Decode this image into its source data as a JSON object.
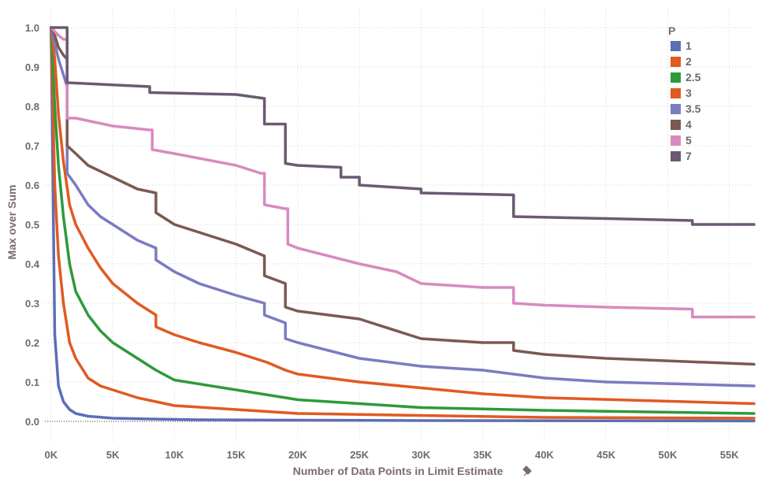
{
  "chart_data": {
    "type": "line",
    "xlabel": "Number of Data Points in Limit Estimate",
    "ylabel": "Max over Sum",
    "xlim": [
      -500,
      57000
    ],
    "ylim": [
      -0.05,
      1.05
    ],
    "x_ticks": [
      0,
      5000,
      10000,
      15000,
      20000,
      25000,
      30000,
      35000,
      40000,
      45000,
      50000,
      55000
    ],
    "x_tick_labels": [
      "0K",
      "5K",
      "10K",
      "15K",
      "20K",
      "25K",
      "30K",
      "35K",
      "40K",
      "45K",
      "50K",
      "55K"
    ],
    "y_ticks": [
      0.0,
      0.1,
      0.2,
      0.3,
      0.4,
      0.5,
      0.6,
      0.7,
      0.8,
      0.9,
      1.0
    ],
    "y_tick_labels": [
      "0.0",
      "0.1",
      "0.2",
      "0.3",
      "0.4",
      "0.5",
      "0.6",
      "0.7",
      "0.8",
      "0.9",
      "1.0"
    ],
    "grid": true,
    "legend_title": "P",
    "legend_position": "top-right",
    "series": [
      {
        "name": "1",
        "color": "#5b6fb5",
        "x": [
          0,
          300,
          600,
          1000,
          1500,
          2000,
          3000,
          5000,
          8000,
          12000,
          20000,
          30000,
          57000
        ],
        "y": [
          1.0,
          0.22,
          0.09,
          0.05,
          0.03,
          0.02,
          0.013,
          0.008,
          0.006,
          0.004,
          0.003,
          0.002,
          0.001
        ]
      },
      {
        "name": "2",
        "color": "#e05a22",
        "x": [
          0,
          300,
          600,
          1000,
          1500,
          2000,
          3000,
          4000,
          5000,
          7000,
          10000,
          15000,
          20000,
          30000,
          40000,
          57000
        ],
        "y": [
          1.0,
          0.6,
          0.42,
          0.3,
          0.2,
          0.16,
          0.11,
          0.09,
          0.08,
          0.06,
          0.04,
          0.03,
          0.02,
          0.015,
          0.01,
          0.008
        ]
      },
      {
        "name": "2.5",
        "color": "#2e9a3a",
        "x": [
          0,
          300,
          600,
          1000,
          1500,
          2000,
          3000,
          4000,
          5000,
          7000,
          8500,
          10000,
          15000,
          20000,
          25000,
          30000,
          40000,
          57000
        ],
        "y": [
          1.0,
          0.8,
          0.65,
          0.52,
          0.4,
          0.33,
          0.27,
          0.23,
          0.2,
          0.16,
          0.13,
          0.105,
          0.08,
          0.055,
          0.045,
          0.035,
          0.028,
          0.02
        ]
      },
      {
        "name": "3",
        "color": "#e05a22",
        "x": [
          0,
          300,
          600,
          1000,
          1500,
          2000,
          3000,
          4000,
          5000,
          7000,
          8500,
          8500,
          10000,
          12000,
          15000,
          17500,
          19000,
          20000,
          25000,
          30000,
          35000,
          40000,
          57000
        ],
        "y": [
          1.0,
          0.92,
          0.78,
          0.66,
          0.55,
          0.5,
          0.44,
          0.39,
          0.35,
          0.3,
          0.27,
          0.24,
          0.22,
          0.2,
          0.175,
          0.15,
          0.13,
          0.12,
          0.1,
          0.085,
          0.07,
          0.06,
          0.045
        ]
      },
      {
        "name": "3.5",
        "color": "#7b7bc4",
        "x": [
          0,
          300,
          600,
          1000,
          1300,
          1300,
          2000,
          3000,
          4000,
          5000,
          7000,
          8500,
          8500,
          10000,
          12000,
          15000,
          17300,
          17300,
          19000,
          19000,
          20000,
          25000,
          30000,
          35000,
          40000,
          45000,
          57000
        ],
        "y": [
          1.0,
          0.96,
          0.92,
          0.88,
          0.85,
          0.63,
          0.6,
          0.55,
          0.52,
          0.5,
          0.46,
          0.44,
          0.41,
          0.38,
          0.35,
          0.32,
          0.3,
          0.27,
          0.25,
          0.21,
          0.2,
          0.16,
          0.14,
          0.13,
          0.11,
          0.1,
          0.09
        ]
      },
      {
        "name": "4",
        "color": "#7a5a52",
        "x": [
          0,
          300,
          600,
          1000,
          1300,
          1300,
          2000,
          3000,
          5000,
          7000,
          8500,
          8500,
          10000,
          12000,
          15000,
          17300,
          17300,
          19000,
          19000,
          20000,
          25000,
          30000,
          35000,
          37500,
          37500,
          40000,
          45000,
          57000
        ],
        "y": [
          1.0,
          0.98,
          0.95,
          0.93,
          0.92,
          0.7,
          0.68,
          0.65,
          0.62,
          0.59,
          0.58,
          0.53,
          0.5,
          0.48,
          0.45,
          0.42,
          0.37,
          0.35,
          0.29,
          0.28,
          0.26,
          0.21,
          0.2,
          0.2,
          0.18,
          0.17,
          0.16,
          0.145
        ]
      },
      {
        "name": "5",
        "color": "#d98ac0",
        "x": [
          0,
          300,
          600,
          1000,
          1300,
          1300,
          2000,
          5000,
          8000,
          8200,
          8200,
          10000,
          15000,
          17000,
          17300,
          17300,
          19000,
          19200,
          19200,
          20000,
          25000,
          28000,
          30000,
          35000,
          37500,
          37500,
          40000,
          45000,
          52000,
          52000,
          57000
        ],
        "y": [
          1.0,
          0.99,
          0.98,
          0.97,
          0.97,
          0.77,
          0.77,
          0.75,
          0.74,
          0.74,
          0.69,
          0.68,
          0.65,
          0.63,
          0.63,
          0.55,
          0.54,
          0.54,
          0.45,
          0.44,
          0.4,
          0.38,
          0.35,
          0.34,
          0.34,
          0.3,
          0.295,
          0.29,
          0.285,
          0.265,
          0.265
        ]
      },
      {
        "name": "7",
        "color": "#6b5a72",
        "x": [
          0,
          1300,
          1300,
          8000,
          8000,
          15000,
          17300,
          17300,
          19000,
          19000,
          20000,
          23500,
          23500,
          25000,
          25000,
          30000,
          30000,
          37500,
          37500,
          45000,
          52000,
          52000,
          57000
        ],
        "y": [
          1.0,
          1.0,
          0.86,
          0.85,
          0.835,
          0.83,
          0.82,
          0.755,
          0.755,
          0.655,
          0.65,
          0.645,
          0.62,
          0.62,
          0.6,
          0.59,
          0.58,
          0.575,
          0.52,
          0.515,
          0.51,
          0.5,
          0.5
        ]
      }
    ]
  }
}
